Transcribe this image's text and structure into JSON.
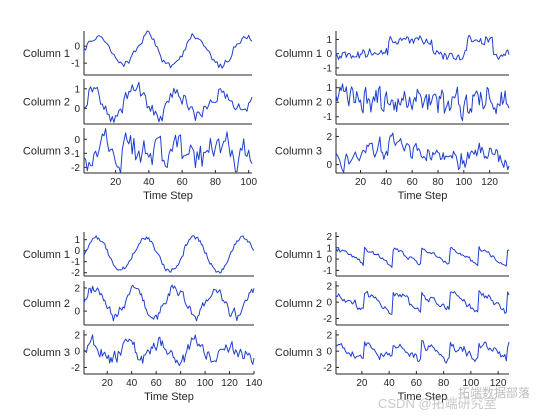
{
  "chart_data": [
    {
      "type": "line",
      "xlabel": "Time Step",
      "xlim": [
        1,
        102
      ],
      "xticks": [
        20,
        40,
        60,
        80,
        100
      ],
      "rows": [
        {
          "label": "Column 1",
          "yticks": [
            0,
            -1
          ],
          "ylim": [
            -1.7,
            0.9
          ],
          "series": [
            {
              "shape": "sine",
              "period": 30,
              "amp": 0.9,
              "offset": -0.3,
              "noise": 0.25,
              "seed": 11
            }
          ]
        },
        {
          "label": "Column 2",
          "yticks": [
            1,
            0
          ],
          "ylim": [
            -0.8,
            1.5
          ],
          "series": [
            {
              "shape": "sine",
              "period": 25,
              "amp": 0.6,
              "offset": 0.3,
              "noise": 0.45,
              "seed": 12
            }
          ]
        },
        {
          "label": "Column 3",
          "yticks": [
            0,
            -1,
            -2
          ],
          "ylim": [
            -2.4,
            0.8
          ],
          "series": [
            {
              "shape": "noise",
              "amp": 0,
              "offset": -0.9,
              "noise": 1.3,
              "seed": 13
            }
          ]
        }
      ]
    },
    {
      "type": "line",
      "xlabel": "Time Step",
      "xlim": [
        1,
        135
      ],
      "xticks": [
        20,
        40,
        60,
        80,
        100,
        120
      ],
      "rows": [
        {
          "label": "Column 1",
          "yticks": [
            1,
            0,
            -1
          ],
          "ylim": [
            -1.5,
            1.6
          ],
          "series": [
            {
              "shape": "steps",
              "amp": 1.0,
              "offset": 0.0,
              "noise": 0.35,
              "seed": 21
            }
          ]
        },
        {
          "label": "Column 2",
          "yticks": [
            1,
            0,
            -1
          ],
          "ylim": [
            -1.5,
            1.6
          ],
          "series": [
            {
              "shape": "noise",
              "amp": 0,
              "offset": 0.1,
              "noise": 1.0,
              "seed": 22
            }
          ]
        },
        {
          "label": "Column 3",
          "yticks": [
            2,
            0
          ],
          "ylim": [
            -0.6,
            2.6
          ],
          "series": [
            {
              "shape": "bump",
              "amp": 1.2,
              "offset": 0.3,
              "noise": 0.7,
              "seed": 23
            }
          ]
        }
      ]
    },
    {
      "type": "line",
      "xlabel": "Time Step",
      "xlim": [
        1,
        140
      ],
      "xticks": [
        20,
        40,
        60,
        80,
        100,
        120,
        140
      ],
      "rows": [
        {
          "label": "Column 1",
          "yticks": [
            1,
            0,
            -1,
            -2
          ],
          "ylim": [
            -2.3,
            1.7
          ],
          "series": [
            {
              "shape": "sine",
              "period": 40,
              "amp": 1.5,
              "offset": -0.3,
              "noise": 0.25,
              "seed": 31
            }
          ]
        },
        {
          "label": "Column 2",
          "yticks": [
            2,
            0
          ],
          "ylim": [
            -1.2,
            2.6
          ],
          "series": [
            {
              "shape": "sine",
              "period": 33,
              "amp": 1.2,
              "offset": 0.8,
              "noise": 0.45,
              "seed": 32
            }
          ]
        },
        {
          "label": "Column 3",
          "yticks": [
            2,
            0,
            -2
          ],
          "ylim": [
            -2.8,
            2.6
          ],
          "series": [
            {
              "shape": "sine",
              "period": 28,
              "amp": 0.9,
              "offset": 0.0,
              "noise": 0.9,
              "seed": 33
            }
          ]
        }
      ]
    },
    {
      "type": "line",
      "xlabel": "Time Step",
      "xlim": [
        1,
        128
      ],
      "xticks": [
        20,
        40,
        60,
        80,
        100,
        120
      ],
      "rows": [
        {
          "label": "Column 1",
          "yticks": [
            2,
            1,
            0,
            -1
          ],
          "ylim": [
            -1.5,
            2.4
          ],
          "series": [
            {
              "shape": "saw",
              "period": 21,
              "amp": 1.6,
              "offset": 0.2,
              "noise": 0.2,
              "seed": 41
            }
          ]
        },
        {
          "label": "Column 2",
          "yticks": [
            2,
            0,
            -2
          ],
          "ylim": [
            -2.8,
            2.6
          ],
          "series": [
            {
              "shape": "saw",
              "period": 21,
              "amp": 2.2,
              "offset": 0.0,
              "noise": 0.5,
              "seed": 42
            }
          ]
        },
        {
          "label": "Column 3",
          "yticks": [
            2,
            0,
            -2
          ],
          "ylim": [
            -2.8,
            2.6
          ],
          "series": [
            {
              "shape": "saw",
              "period": 21,
              "amp": 1.8,
              "offset": 0.0,
              "noise": 0.6,
              "seed": 43
            }
          ]
        }
      ]
    }
  ],
  "watermark": {
    "main": "CSDN @拓端研究室",
    "overlay": "拓端数据部落"
  }
}
